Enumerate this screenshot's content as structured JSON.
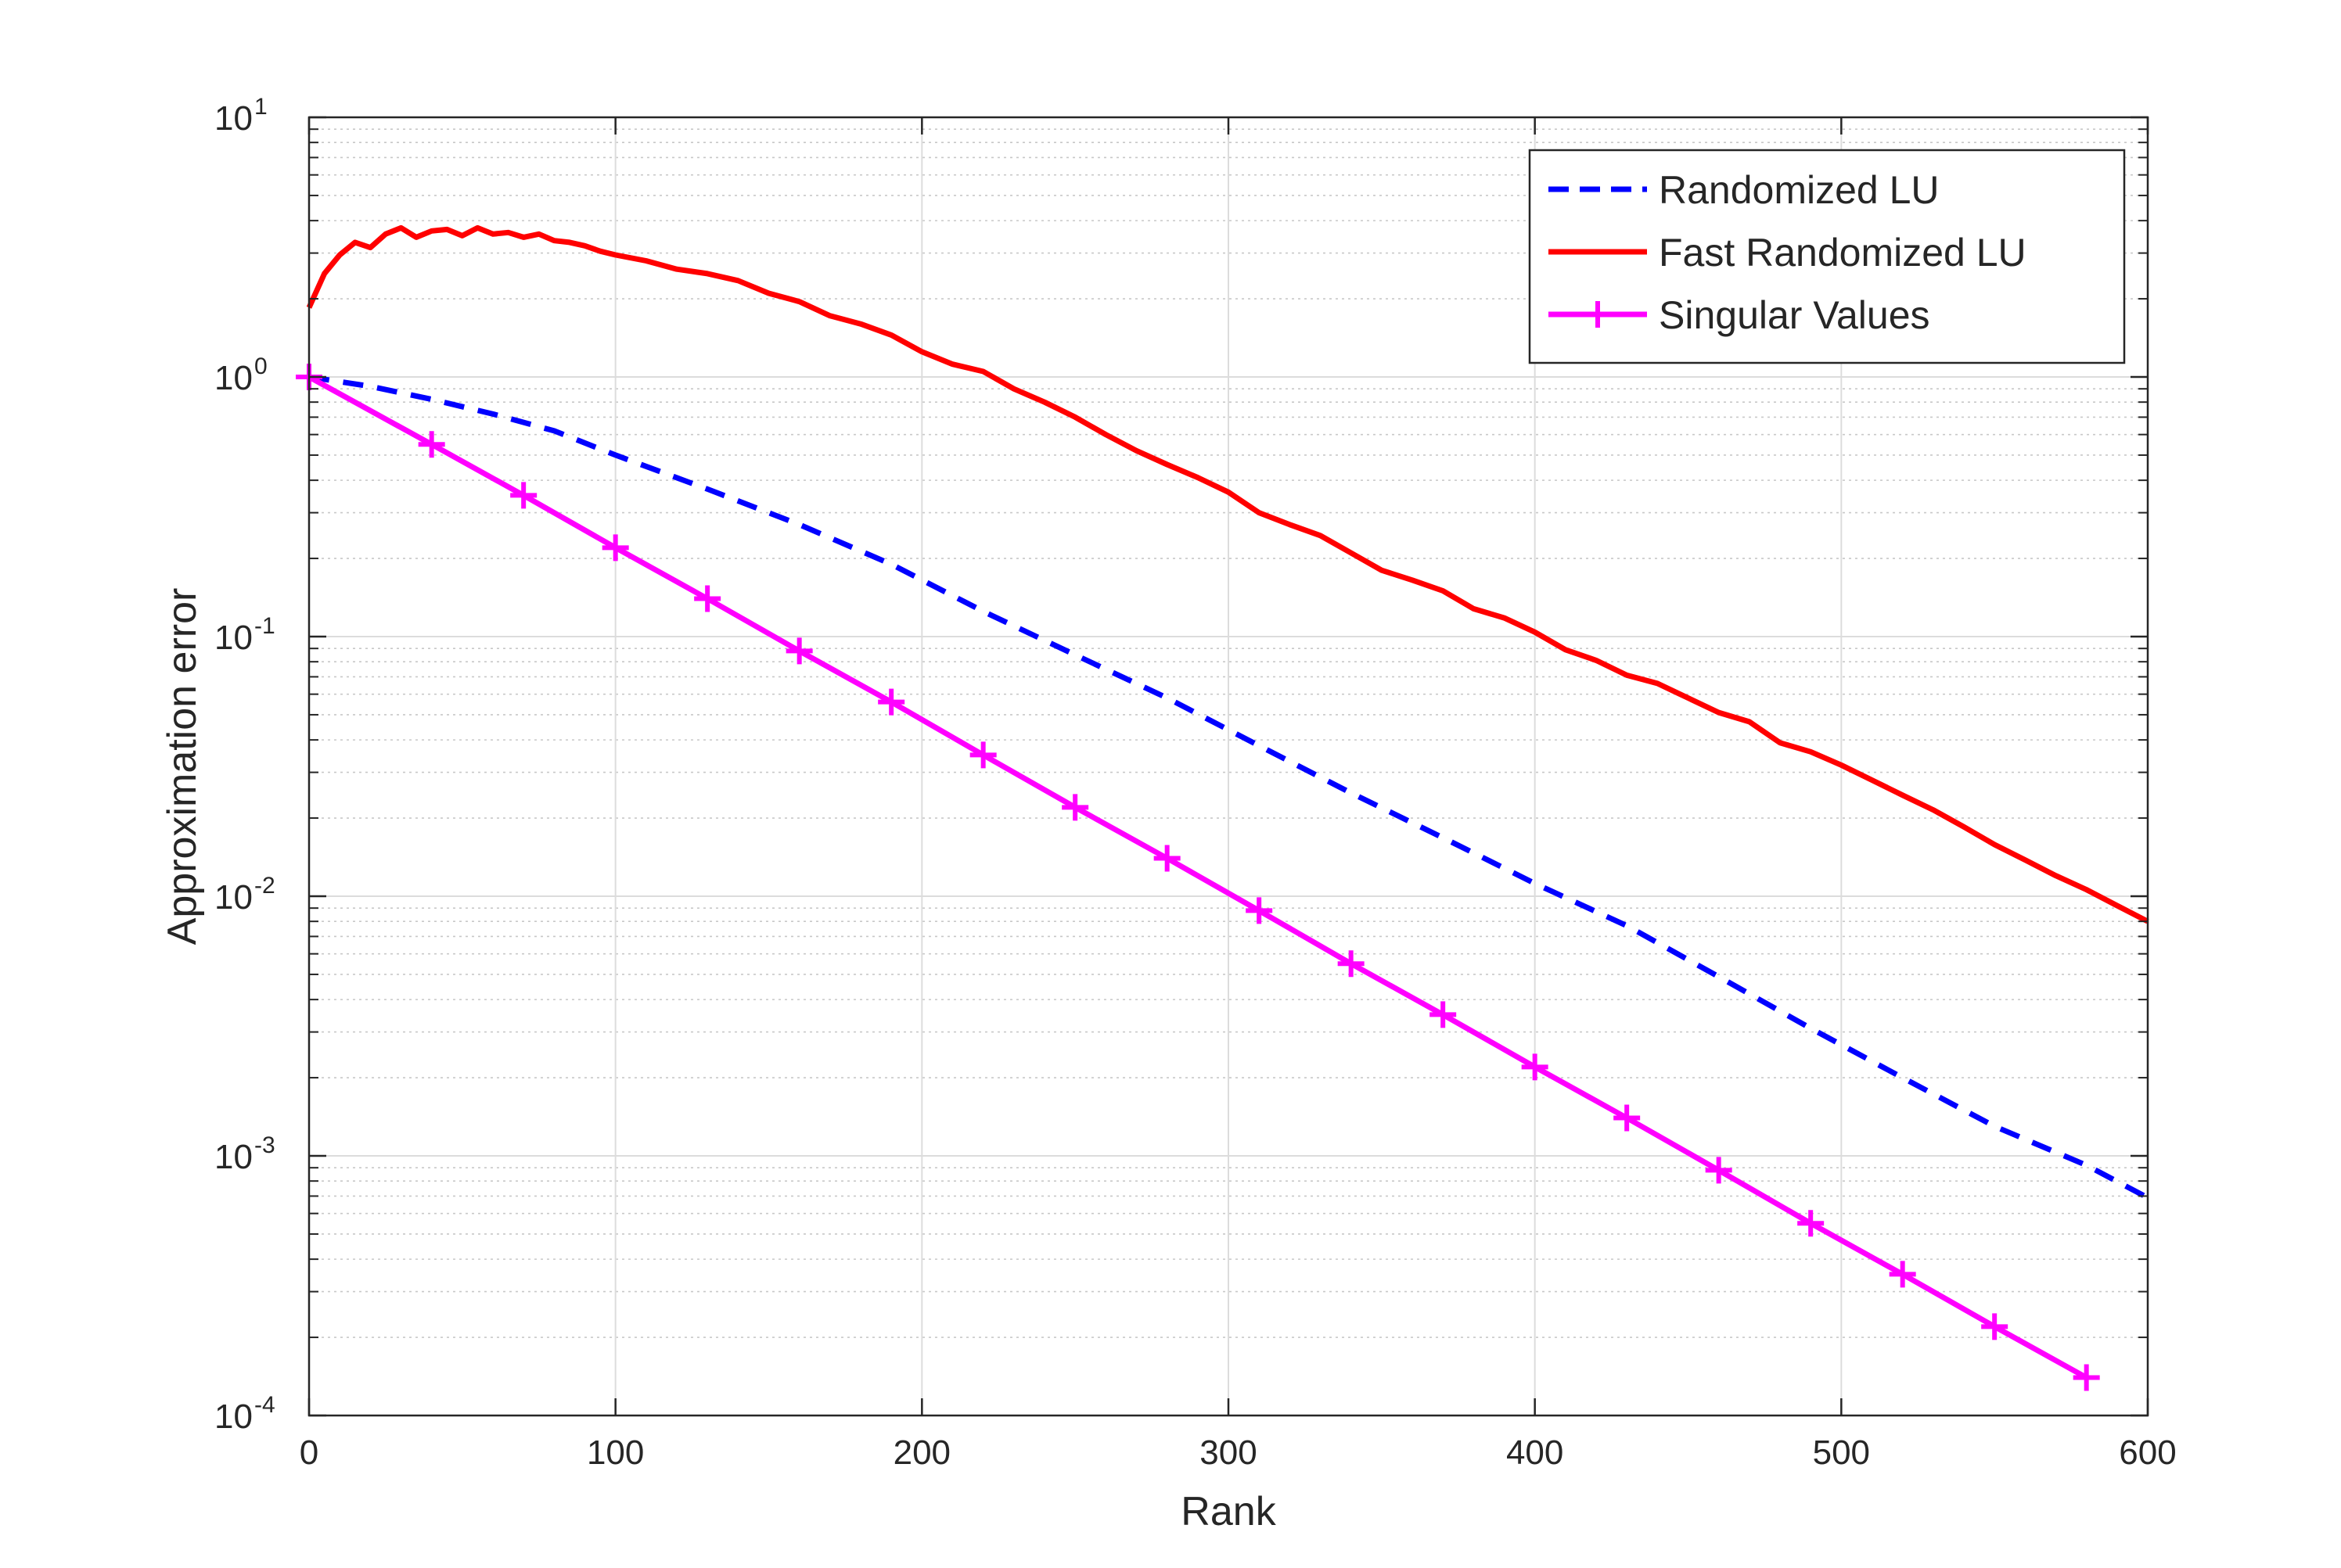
{
  "chart_data": {
    "type": "line",
    "title": "",
    "xlabel": "Rank",
    "ylabel": "Approximation error",
    "xlim": [
      0,
      600
    ],
    "ylim": [
      0.0001,
      10
    ],
    "yscale": "log",
    "grid": true,
    "legend_position": "top-right",
    "x_ticks": [
      "0",
      "100",
      "200",
      "300",
      "400",
      "500",
      "600"
    ],
    "y_ticks": [
      {
        "base": "10",
        "exp": "1",
        "value": 10
      },
      {
        "base": "10",
        "exp": "0",
        "value": 1
      },
      {
        "base": "10",
        "exp": "-1",
        "value": 0.1
      },
      {
        "base": "10",
        "exp": "-2",
        "value": 0.01
      },
      {
        "base": "10",
        "exp": "-3",
        "value": 0.001
      },
      {
        "base": "10",
        "exp": "-4",
        "value": 0.0001
      }
    ],
    "series": [
      {
        "name": "Randomized LU",
        "color": "#0000ff",
        "style": "dashed",
        "marker": "none",
        "x": [
          0,
          20,
          40,
          60,
          80,
          100,
          130,
          160,
          190,
          220,
          250,
          280,
          310,
          340,
          370,
          400,
          430,
          460,
          490,
          520,
          550,
          580,
          600
        ],
        "y": [
          1.0,
          0.92,
          0.82,
          0.72,
          0.62,
          0.5,
          0.37,
          0.27,
          0.19,
          0.125,
          0.085,
          0.058,
          0.038,
          0.025,
          0.0168,
          0.0112,
          0.0077,
          0.0049,
          0.0031,
          0.002,
          0.0013,
          0.00092,
          0.00069
        ]
      },
      {
        "name": "Fast Randomized LU",
        "color": "#ff0000",
        "style": "solid",
        "marker": "none",
        "x": [
          0,
          5,
          10,
          15,
          20,
          25,
          30,
          35,
          40,
          45,
          50,
          55,
          60,
          65,
          70,
          75,
          80,
          85,
          90,
          95,
          100,
          110,
          120,
          130,
          140,
          150,
          160,
          170,
          180,
          190,
          200,
          210,
          220,
          230,
          240,
          250,
          260,
          270,
          280,
          290,
          300,
          310,
          320,
          330,
          340,
          350,
          360,
          370,
          380,
          390,
          400,
          410,
          420,
          430,
          440,
          450,
          460,
          470,
          480,
          490,
          500,
          510,
          520,
          530,
          540,
          550,
          560,
          570,
          580,
          590,
          600
        ],
        "y": [
          1.85,
          2.5,
          2.95,
          3.3,
          3.15,
          3.55,
          3.75,
          3.45,
          3.65,
          3.7,
          3.5,
          3.75,
          3.55,
          3.6,
          3.45,
          3.55,
          3.35,
          3.3,
          3.2,
          3.05,
          2.95,
          2.8,
          2.6,
          2.5,
          2.35,
          2.1,
          1.95,
          1.72,
          1.6,
          1.45,
          1.25,
          1.12,
          1.05,
          0.9,
          0.8,
          0.7,
          0.6,
          0.52,
          0.46,
          0.41,
          0.36,
          0.3,
          0.27,
          0.245,
          0.21,
          0.18,
          0.165,
          0.15,
          0.128,
          0.118,
          0.104,
          0.089,
          0.081,
          0.071,
          0.066,
          0.058,
          0.051,
          0.047,
          0.039,
          0.036,
          0.032,
          0.028,
          0.0245,
          0.0215,
          0.0185,
          0.0158,
          0.0138,
          0.012,
          0.0106,
          0.0092,
          0.008
        ]
      },
      {
        "name": "Singular Values",
        "color": "#ff00ff",
        "style": "solid",
        "marker": "plus",
        "x": [
          0,
          40,
          70,
          100,
          130,
          160,
          190,
          220,
          250,
          280,
          310,
          340,
          370,
          400,
          430,
          460,
          490,
          520,
          550,
          580
        ],
        "y": [
          1.0,
          0.55,
          0.35,
          0.22,
          0.14,
          0.088,
          0.056,
          0.035,
          0.022,
          0.014,
          0.0088,
          0.0055,
          0.0035,
          0.0022,
          0.0014,
          0.00088,
          0.00055,
          0.00035,
          0.00022,
          0.00014
        ]
      }
    ]
  }
}
